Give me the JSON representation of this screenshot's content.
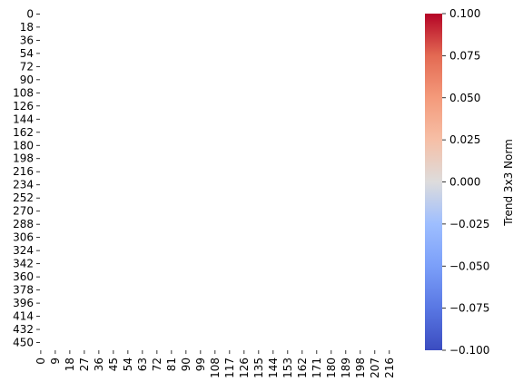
{
  "chart_data": {
    "type": "heatmap",
    "title": "",
    "xlabel": "",
    "ylabel": "",
    "y_ticks": [
      "0",
      "18",
      "36",
      "54",
      "72",
      "90",
      "108",
      "126",
      "144",
      "162",
      "180",
      "198",
      "216",
      "234",
      "252",
      "270",
      "288",
      "306",
      "324",
      "342",
      "360",
      "378",
      "396",
      "414",
      "432",
      "450"
    ],
    "x_ticks": [
      "0",
      "9",
      "18",
      "27",
      "36",
      "45",
      "54",
      "63",
      "72",
      "81",
      "90",
      "99",
      "108",
      "117",
      "126",
      "135",
      "144",
      "153",
      "162",
      "171",
      "180",
      "189",
      "198",
      "207",
      "216"
    ],
    "y_tick_values": [
      0,
      18,
      36,
      54,
      72,
      90,
      108,
      126,
      144,
      162,
      180,
      198,
      216,
      234,
      252,
      270,
      288,
      306,
      324,
      342,
      360,
      378,
      396,
      414,
      432,
      450
    ],
    "x_tick_values": [
      0,
      9,
      18,
      27,
      36,
      45,
      54,
      63,
      72,
      81,
      90,
      99,
      108,
      117,
      126,
      135,
      144,
      153,
      162,
      171,
      180,
      189,
      198,
      207,
      216
    ],
    "rows": 461,
    "cols": 220,
    "values_displayed": "empty",
    "colorbar": {
      "label": "Trend 3x3 Norm",
      "colormap": "coolwarm",
      "min": -0.1,
      "max": 0.1,
      "ticks": [
        "0.100",
        "0.075",
        "0.050",
        "0.025",
        "0.000",
        "−0.025",
        "−0.050",
        "−0.075",
        "−0.100"
      ],
      "tick_values": [
        0.1,
        0.075,
        0.05,
        0.025,
        0.0,
        -0.025,
        -0.05,
        -0.075,
        -0.1
      ]
    }
  }
}
